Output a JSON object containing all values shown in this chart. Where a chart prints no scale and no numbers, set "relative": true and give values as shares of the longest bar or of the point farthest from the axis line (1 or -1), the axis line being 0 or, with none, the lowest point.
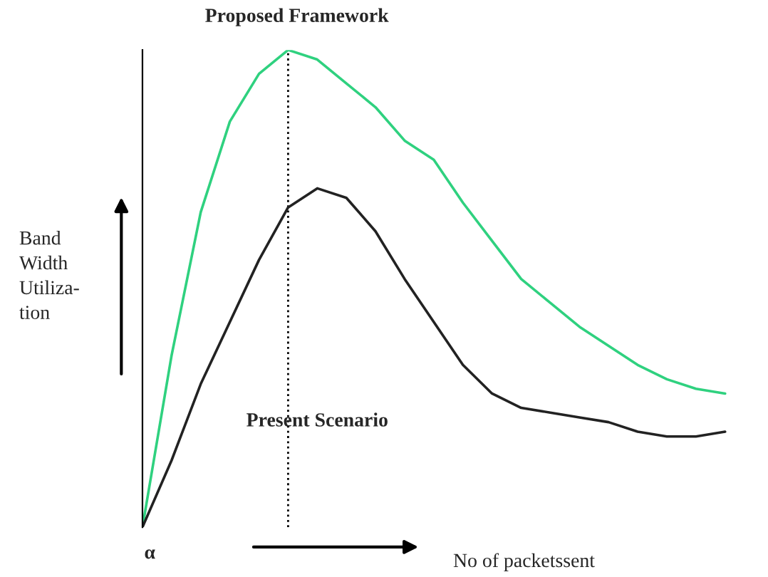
{
  "chart_data": {
    "type": "line",
    "relative": true,
    "xlabel": "No of packetssent",
    "ylabel": "Band\nWidth\nUtiliza-\ntion",
    "categories": [
      null,
      null,
      null,
      null,
      null,
      null,
      null,
      null,
      null,
      null,
      null,
      null,
      null,
      null,
      null,
      null,
      null,
      null,
      null,
      null,
      null
    ],
    "series": [
      {
        "name": "Proposed Framework",
        "color": "#2fd17f",
        "values": [
          0,
          0.36,
          0.66,
          0.85,
          0.95,
          1.0,
          0.98,
          0.93,
          0.88,
          0.81,
          0.77,
          0.68,
          0.6,
          0.52,
          0.47,
          0.42,
          0.38,
          0.34,
          0.31,
          0.29,
          0.28
        ]
      },
      {
        "name": "Present Scenario",
        "color": "#222222",
        "values": [
          0,
          0.14,
          0.3,
          0.43,
          0.56,
          0.67,
          0.71,
          0.69,
          0.62,
          0.52,
          0.43,
          0.34,
          0.28,
          0.25,
          0.24,
          0.23,
          0.22,
          0.2,
          0.19,
          0.19,
          0.2
        ]
      }
    ],
    "annotations": [
      "α"
    ],
    "legend": false,
    "marker": "none",
    "line_style": "solid"
  }
}
